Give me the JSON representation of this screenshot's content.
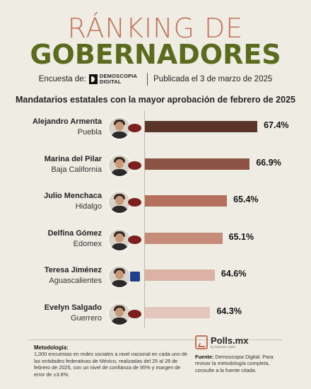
{
  "header": {
    "title_line1": "RÁNKING DE",
    "title_line2": "GOBERNADORES",
    "encuesta_label": "Encuesta de:",
    "logo_line1": "DEMOSCOPIA",
    "logo_line2": "DIGITAL",
    "published": "Publicada el 3 de marzo de 2025",
    "subtitle": "Mandatarios estatales con la mayor aprobación de febrero de 2025"
  },
  "chart_data": {
    "type": "bar",
    "orientation": "horizontal",
    "title": "Mandatarios estatales con la mayor aprobación de febrero de 2025",
    "categories": [
      "Alejandro Armenta",
      "Marina del Pilar",
      "Julio Menchaca",
      "Delfina Gómez",
      "Teresa Jiménez",
      "Evelyn Salgado"
    ],
    "states": [
      "Puebla",
      "Baja California",
      "Hidalgo",
      "Edomex",
      "Aguascalientes",
      "Guerrero"
    ],
    "parties": [
      "MORENA",
      "MORENA",
      "MORENA",
      "MORENA",
      "PAN",
      "MORENA"
    ],
    "values": [
      67.4,
      66.9,
      65.4,
      65.1,
      64.6,
      64.3
    ],
    "value_labels": [
      "67.4%",
      "66.9%",
      "65.4%",
      "65.1%",
      "64.6%",
      "64.3%"
    ],
    "colors": [
      "#5b352a",
      "#8c5244",
      "#b4705d",
      "#c78b79",
      "#dbb2a5",
      "#e5c6bc"
    ],
    "party_colors": {
      "MORENA": "#7b1f1f",
      "PAN": "#1f3e8c"
    }
  },
  "footer": {
    "metodologia_title": "Metodología:",
    "metodologia_text": "1,000 encuestas en redes sociales a nivel nacional en cada uno de las entidades federativas de México, realizadas del 25 al 28 de febrero de 2025, con un nivel de confianza de 95% y margen de error de ±3.8%.",
    "brand": "Polls.mx",
    "brand_sub": "by Massive Caller",
    "fuente_title": "Fuente:",
    "fuente_text": "Demoscopia Digital. Para revisar la metodología completa, consulte a la fuente citada."
  }
}
